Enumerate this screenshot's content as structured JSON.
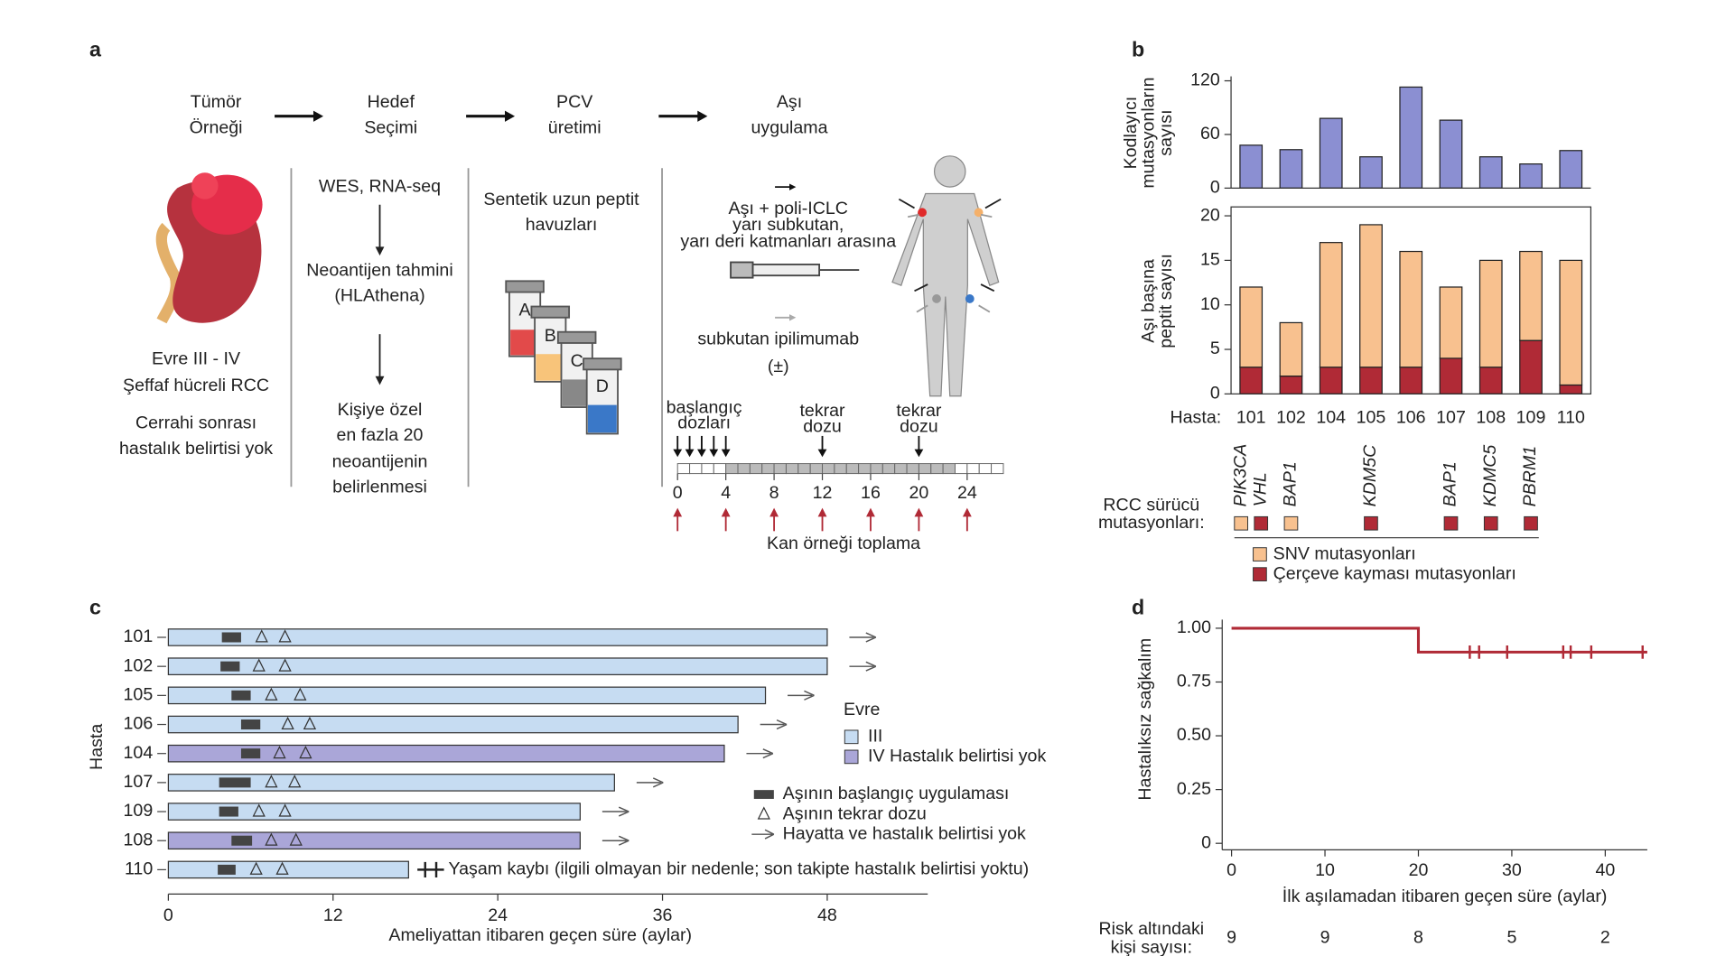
{
  "panel_labels": [
    "a",
    "b",
    "c",
    "d"
  ],
  "diagram": {
    "steps": [
      [
        "Tümör",
        "Örneği"
      ],
      [
        "Hedef",
        "Seçimi"
      ],
      [
        "PCV",
        "üretimi"
      ],
      [
        "Aşı",
        "uygulama"
      ]
    ],
    "tumor": [
      "Evre III - IV",
      "Şeffaf hücreli RCC",
      "Cerrahi sonrası",
      "hastalık belirtisi yok"
    ],
    "selection": [
      "WES, RNA-seq",
      "Neoantijen tahmini",
      "(HLAthena)",
      "Kişiye özel",
      "en fazla 20",
      "neoantijenin",
      "belirlenmesi"
    ],
    "production": [
      "Sentetik uzun peptit",
      "havuzları"
    ],
    "vials": [
      "A",
      "B",
      "C",
      "D"
    ],
    "vaccine": [
      "Aşı + poli-ICLC",
      "yarı subkutan,",
      "yarı deri katmanları arasına"
    ],
    "ipilimumab": [
      "subkutan ipilimumab",
      "(±)"
    ],
    "timeline": {
      "ticks": [
        0,
        4,
        8,
        12,
        16,
        20,
        24
      ],
      "prime_label": [
        "başlangıç",
        "dozları"
      ],
      "prime_weeks": [
        0,
        1,
        2,
        3,
        4
      ],
      "boosts": [
        {
          "value": 12,
          "label": [
            "tekrar",
            "dozu"
          ]
        },
        {
          "value": 20,
          "label": [
            "tekrar",
            "dozu"
          ]
        }
      ],
      "blood_label": "Kan örneği toplama"
    }
  },
  "chart_data": [
    {
      "type": "bar",
      "ylabel": [
        "Kodlayıcı",
        "mutasyonların",
        "sayısı"
      ],
      "categories": [
        "101",
        "102",
        "104",
        "105",
        "106",
        "107",
        "108",
        "109",
        "110"
      ],
      "values": [
        48,
        43,
        78,
        35,
        113,
        76,
        35,
        27,
        42
      ],
      "color": "#8b8fd2",
      "ylim": [
        0,
        125
      ],
      "yticks": [
        0,
        60,
        120
      ]
    },
    {
      "type": "stacked_bar",
      "ylabel": [
        "Aşı başına",
        "peptit sayısı"
      ],
      "xlabel": "Hasta:",
      "categories": [
        "101",
        "102",
        "104",
        "105",
        "106",
        "107",
        "108",
        "109",
        "110"
      ],
      "series": [
        {
          "name": "Çerçeve kayması mutasyonları",
          "color": "#b02a36",
          "values": [
            3,
            2,
            3,
            3,
            3,
            4,
            3,
            6,
            1
          ]
        },
        {
          "name": "SNV mutasyonları",
          "color": "#f8c18f",
          "values": [
            9,
            6,
            14,
            16,
            13,
            8,
            12,
            10,
            14
          ]
        }
      ],
      "ylim": [
        0,
        21
      ],
      "yticks": [
        0,
        5,
        10,
        15,
        20
      ],
      "drivers_label": [
        "RCC sürücü",
        "mutasyonları:"
      ],
      "drivers": [
        {
          "gene": "PIK3CA",
          "patient": "101",
          "color": "#f8c18f"
        },
        {
          "gene": "VHL",
          "patient": "101",
          "color": "#b02a36"
        },
        {
          "gene": "BAP1",
          "patient": "102",
          "color": "#f8c18f"
        },
        {
          "gene": "KDM5C",
          "patient": "105",
          "color": "#b02a36"
        },
        {
          "gene": "BAP1",
          "patient": "107",
          "color": "#b02a36"
        },
        {
          "gene": "KDMC5",
          "patient": "108",
          "color": "#b02a36"
        },
        {
          "gene": "PBRM1",
          "patient": "109",
          "color": "#b02a36"
        }
      ]
    },
    {
      "type": "swimmer",
      "ylabel": "Hasta",
      "xlabel": "Ameliyattan itibaren geçen süre (aylar)",
      "categories": [
        "101",
        "102",
        "105",
        "106",
        "104",
        "107",
        "109",
        "108",
        "110"
      ],
      "values": [
        48,
        48,
        43.5,
        41.5,
        40.5,
        32.5,
        30,
        30,
        17.5
      ],
      "bar_colors": [
        "#c6dcf2",
        "#c6dcf2",
        "#c6dcf2",
        "#c6dcf2",
        "#aaa6d8",
        "#c6dcf2",
        "#c6dcf2",
        "#aaa6d8",
        "#c6dcf2"
      ],
      "prime": [
        [
          3.9,
          5.3
        ],
        [
          3.8,
          5.2
        ],
        [
          4.6,
          6.0
        ],
        [
          5.3,
          6.7
        ],
        [
          5.3,
          6.7
        ],
        [
          3.7,
          6.0
        ],
        [
          3.7,
          5.1
        ],
        [
          4.6,
          6.1
        ],
        [
          3.6,
          4.9
        ]
      ],
      "boosts": [
        [
          6.8,
          8.5
        ],
        [
          6.6,
          8.5
        ],
        [
          7.5,
          9.6
        ],
        [
          8.7,
          10.3
        ],
        [
          8.1,
          10.0
        ],
        [
          7.5,
          9.2
        ],
        [
          6.6,
          8.5
        ],
        [
          7.5,
          9.3
        ],
        [
          6.4,
          8.3
        ]
      ],
      "alive": [
        true,
        true,
        true,
        true,
        true,
        true,
        true,
        true,
        false
      ],
      "death_note": "Yaşam kaybı (ilgili olmayan bir nedenle; son takipte hastalık belirtisi yoktu)",
      "xlim": [
        0,
        55
      ],
      "xticks": [
        0,
        12,
        24,
        36,
        48
      ],
      "stage_title": "Evre",
      "stages": [
        {
          "name": "III",
          "color": "#c6dcf2"
        },
        {
          "name": "IV Hastalık belirtisi yok",
          "color": "#aaa6d8"
        }
      ],
      "event_legend": [
        "Aşının başlangıç uygulaması",
        "Aşının tekrar dozu",
        "Hayatta ve hastalık belirtisi yok"
      ]
    },
    {
      "type": "step",
      "ylabel": "Hastalıksız sağkalım",
      "xlabel": "İlk aşılamadan itibaren geçen süre (aylar)",
      "color": "#b02a36",
      "x": [
        0,
        20,
        20,
        44.5
      ],
      "y": [
        1,
        1,
        0.889,
        0.889
      ],
      "censor_x": [
        25.5,
        26.5,
        29.5,
        35.5,
        36.3,
        38.5,
        44
      ],
      "censor_y": [
        0.889,
        0.889,
        0.889,
        0.889,
        0.889,
        0.889,
        0.889
      ],
      "xlim": [
        -1,
        44.5
      ],
      "ylim": [
        -0.03,
        1.04
      ],
      "xticks": [
        0,
        10,
        20,
        30,
        40
      ],
      "yticks": [
        0,
        {
          "value": 0.25,
          "label": "0.25"
        },
        {
          "value": 0.5,
          "label": "0.50"
        },
        {
          "value": 0.75,
          "label": "0.75"
        },
        {
          "value": 1,
          "label": "1.00"
        }
      ],
      "risk_label": [
        "Risk altındaki",
        "kişi sayısı:"
      ],
      "at_risk": [
        9,
        9,
        8,
        5,
        2
      ]
    }
  ]
}
